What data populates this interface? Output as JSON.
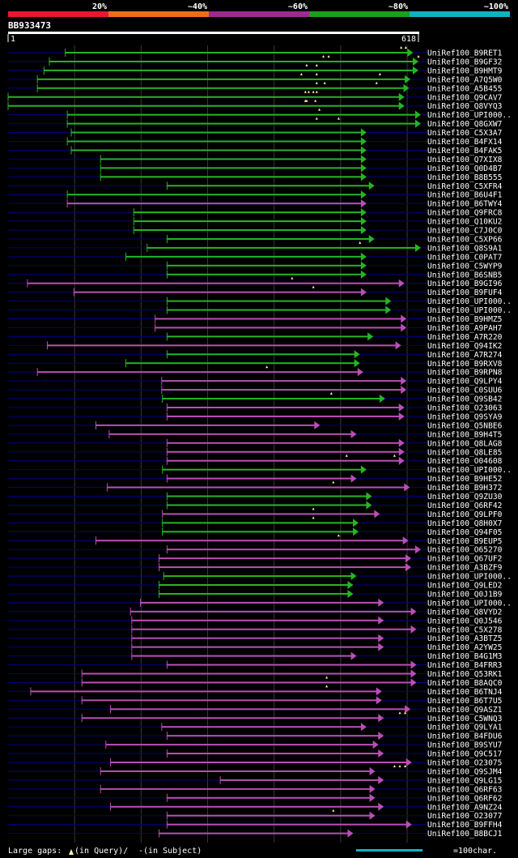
{
  "chart_data": {
    "type": "alignment_overview",
    "query_id": "BB933473",
    "query_start_label": "1",
    "query_end_label": "618",
    "query_length": 618,
    "identity_legend": [
      {
        "label": "20%",
        "color": "#e8182f"
      },
      {
        "label": "~40%",
        "color": "#e86f1c"
      },
      {
        "label": "~60%",
        "color": "#9b2b8f"
      },
      {
        "label": "~80%",
        "color": "#1d9e1d"
      },
      {
        "label": "~100%",
        "color": "#12b0c0"
      }
    ],
    "colors": {
      "high": "#26b526",
      "medium": "#b94fb9",
      "gap": "#000080",
      "grid": "#383838"
    },
    "footer": {
      "gaps_prefix": "Large gaps:",
      "gaps_query": "(in Query)/",
      "gaps_subject_mark": "-",
      "gaps_subject": " (in Subject)",
      "scale_label": "=100char.",
      "scale_units": 100
    },
    "hits": [
      {
        "name": "UniRef100_B9RET1",
        "start": 87,
        "end": 610,
        "id": "high"
      },
      {
        "name": "UniRef100_B9GF32",
        "start": 63,
        "end": 618,
        "id": "high"
      },
      {
        "name": "UniRef100_B9HMT9",
        "start": 55,
        "end": 618,
        "id": "high"
      },
      {
        "name": "UniRef100_A7Q5W0",
        "start": 45,
        "end": 606,
        "id": "high"
      },
      {
        "name": "UniRef100_A5B455",
        "start": 45,
        "end": 604,
        "id": "high"
      },
      {
        "name": "UniRef100_Q9CAV7",
        "start": 1,
        "end": 597,
        "id": "high"
      },
      {
        "name": "UniRef100_Q8VYQ3",
        "start": 1,
        "end": 597,
        "id": "high"
      },
      {
        "name": "UniRef100_UPI000..",
        "start": 90,
        "end": 635,
        "id": "high"
      },
      {
        "name": "UniRef100_Q8GXW7",
        "start": 90,
        "end": 635,
        "id": "high"
      },
      {
        "name": "UniRef100_C5X3A7",
        "start": 96,
        "end": 540,
        "id": "high"
      },
      {
        "name": "UniRef100_B4FX14",
        "start": 90,
        "end": 540,
        "id": "high"
      },
      {
        "name": "UniRef100_B4FAK5",
        "start": 96,
        "end": 540,
        "id": "high"
      },
      {
        "name": "UniRef100_Q7XIX8",
        "start": 140,
        "end": 540,
        "id": "high"
      },
      {
        "name": "UniRef100_Q0D4B7",
        "start": 140,
        "end": 540,
        "id": "high"
      },
      {
        "name": "UniRef100_B8B555",
        "start": 140,
        "end": 540,
        "id": "high"
      },
      {
        "name": "UniRef100_C5XFR4",
        "start": 240,
        "end": 552,
        "id": "high"
      },
      {
        "name": "UniRef100_B6U4F1",
        "start": 90,
        "end": 540,
        "id": "high"
      },
      {
        "name": "UniRef100_B6TWY4",
        "start": 90,
        "end": 540,
        "id": "medium"
      },
      {
        "name": "UniRef100_Q9FRC8",
        "start": 190,
        "end": 540,
        "id": "high"
      },
      {
        "name": "UniRef100_Q10KU2",
        "start": 190,
        "end": 540,
        "id": "high"
      },
      {
        "name": "UniRef100_C7J0C0",
        "start": 190,
        "end": 540,
        "id": "high"
      },
      {
        "name": "UniRef100_C5XP66",
        "start": 240,
        "end": 552,
        "id": "high"
      },
      {
        "name": "UniRef100_Q8S9A1",
        "start": 210,
        "end": 635,
        "id": "high"
      },
      {
        "name": "UniRef100_C0PAT7",
        "start": 178,
        "end": 540,
        "id": "high"
      },
      {
        "name": "UniRef100_C5WYP9",
        "start": 240,
        "end": 540,
        "id": "high"
      },
      {
        "name": "UniRef100_B6SNB5",
        "start": 240,
        "end": 540,
        "id": "high"
      },
      {
        "name": "UniRef100_B9GI96",
        "start": 30,
        "end": 597,
        "id": "medium"
      },
      {
        "name": "UniRef100_B9FUF4",
        "start": 100,
        "end": 540,
        "id": "medium"
      },
      {
        "name": "UniRef100_UPI000..",
        "start": 240,
        "end": 577,
        "id": "high"
      },
      {
        "name": "UniRef100_UPI000..",
        "start": 240,
        "end": 577,
        "id": "high"
      },
      {
        "name": "UniRef100_B9HMZ5",
        "start": 222,
        "end": 600,
        "id": "medium"
      },
      {
        "name": "UniRef100_A9PAH7",
        "start": 222,
        "end": 600,
        "id": "medium"
      },
      {
        "name": "UniRef100_A7R220",
        "start": 240,
        "end": 550,
        "id": "high"
      },
      {
        "name": "UniRef100_Q94IK2",
        "start": 60,
        "end": 592,
        "id": "medium"
      },
      {
        "name": "UniRef100_A7R274",
        "start": 240,
        "end": 530,
        "id": "high"
      },
      {
        "name": "UniRef100_B9RXV8",
        "start": 178,
        "end": 530,
        "id": "high"
      },
      {
        "name": "UniRef100_B9RPN8",
        "start": 45,
        "end": 535,
        "id": "medium"
      },
      {
        "name": "UniRef100_Q9LPY4",
        "start": 232,
        "end": 600,
        "id": "medium"
      },
      {
        "name": "UniRef100_C0SUU6",
        "start": 232,
        "end": 600,
        "id": "medium"
      },
      {
        "name": "UniRef100_Q9SB42",
        "start": 233,
        "end": 568,
        "id": "high"
      },
      {
        "name": "UniRef100_O23063",
        "start": 240,
        "end": 597,
        "id": "medium"
      },
      {
        "name": "UniRef100_Q9SYA9",
        "start": 240,
        "end": 597,
        "id": "medium"
      },
      {
        "name": "UniRef100_Q5NBE6",
        "start": 133,
        "end": 470,
        "id": "medium"
      },
      {
        "name": "UniRef100_B9H4T5",
        "start": 153,
        "end": 525,
        "id": "medium"
      },
      {
        "name": "UniRef100_Q8LAG8",
        "start": 240,
        "end": 597,
        "id": "medium"
      },
      {
        "name": "UniRef100_Q8LE85",
        "start": 240,
        "end": 597,
        "id": "medium"
      },
      {
        "name": "UniRef100_O04608",
        "start": 240,
        "end": 597,
        "id": "medium"
      },
      {
        "name": "UniRef100_UPI000..",
        "start": 233,
        "end": 540,
        "id": "high"
      },
      {
        "name": "UniRef100_B9HE52",
        "start": 240,
        "end": 525,
        "id": "medium"
      },
      {
        "name": "UniRef100_B9H372",
        "start": 150,
        "end": 605,
        "id": "medium"
      },
      {
        "name": "UniRef100_Q9ZU30",
        "start": 240,
        "end": 548,
        "id": "high"
      },
      {
        "name": "UniRef100_Q6RF42",
        "start": 240,
        "end": 548,
        "id": "high"
      },
      {
        "name": "UniRef100_Q9LPF0",
        "start": 233,
        "end": 560,
        "id": "medium"
      },
      {
        "name": "UniRef100_Q8H0X7",
        "start": 233,
        "end": 528,
        "id": "high"
      },
      {
        "name": "UniRef100_Q94F05",
        "start": 233,
        "end": 528,
        "id": "high"
      },
      {
        "name": "UniRef100_B9EUP5",
        "start": 133,
        "end": 603,
        "id": "medium"
      },
      {
        "name": "UniRef100_O65270",
        "start": 240,
        "end": 635,
        "id": "medium"
      },
      {
        "name": "UniRef100_Q67UF2",
        "start": 228,
        "end": 607,
        "id": "medium"
      },
      {
        "name": "UniRef100_A3BZF9",
        "start": 228,
        "end": 607,
        "id": "medium"
      },
      {
        "name": "UniRef100_UPI000..",
        "start": 235,
        "end": 525,
        "id": "high"
      },
      {
        "name": "UniRef100_Q9LED2",
        "start": 228,
        "end": 520,
        "id": "high"
      },
      {
        "name": "UniRef100_Q0J1B9",
        "start": 228,
        "end": 520,
        "id": "high"
      },
      {
        "name": "UniRef100_UPI000..",
        "start": 200,
        "end": 566,
        "id": "medium"
      },
      {
        "name": "UniRef100_Q8VYD2",
        "start": 185,
        "end": 615,
        "id": "medium"
      },
      {
        "name": "UniRef100_Q0J546",
        "start": 187,
        "end": 566,
        "id": "medium"
      },
      {
        "name": "UniRef100_C5X278",
        "start": 187,
        "end": 615,
        "id": "medium"
      },
      {
        "name": "UniRef100_A3BTZ5",
        "start": 187,
        "end": 566,
        "id": "medium"
      },
      {
        "name": "UniRef100_A2YW25",
        "start": 187,
        "end": 566,
        "id": "medium"
      },
      {
        "name": "UniRef100_B4G1M3",
        "start": 187,
        "end": 525,
        "id": "medium"
      },
      {
        "name": "UniRef100_B4FRR3",
        "start": 240,
        "end": 615,
        "id": "medium"
      },
      {
        "name": "UniRef100_Q53RK1",
        "start": 112,
        "end": 615,
        "id": "medium"
      },
      {
        "name": "UniRef100_B8AQC0",
        "start": 112,
        "end": 615,
        "id": "medium"
      },
      {
        "name": "UniRef100_B6TNJ4",
        "start": 35,
        "end": 563,
        "id": "medium"
      },
      {
        "name": "UniRef100_B6T7U5",
        "start": 112,
        "end": 563,
        "id": "medium"
      },
      {
        "name": "UniRef100_Q9ASZ1",
        "start": 155,
        "end": 606,
        "id": "medium"
      },
      {
        "name": "UniRef100_C5WNQ3",
        "start": 112,
        "end": 566,
        "id": "medium"
      },
      {
        "name": "UniRef100_Q9LYA1",
        "start": 232,
        "end": 540,
        "id": "medium"
      },
      {
        "name": "UniRef100_B4FDU6",
        "start": 240,
        "end": 566,
        "id": "medium"
      },
      {
        "name": "UniRef100_B9SYU7",
        "start": 148,
        "end": 558,
        "id": "medium"
      },
      {
        "name": "UniRef100_Q9C517",
        "start": 240,
        "end": 566,
        "id": "medium"
      },
      {
        "name": "UniRef100_O23075",
        "start": 155,
        "end": 608,
        "id": "medium"
      },
      {
        "name": "UniRef100_Q9SJM4",
        "start": 140,
        "end": 553,
        "id": "medium"
      },
      {
        "name": "UniRef100_Q9LG15",
        "start": 320,
        "end": 566,
        "id": "medium"
      },
      {
        "name": "UniRef100_Q6RF63",
        "start": 140,
        "end": 553,
        "id": "medium"
      },
      {
        "name": "UniRef100_Q6RF62",
        "start": 240,
        "end": 553,
        "id": "medium"
      },
      {
        "name": "UniRef100_A9NZ24",
        "start": 155,
        "end": 566,
        "id": "medium"
      },
      {
        "name": "UniRef100_O23077",
        "start": 240,
        "end": 553,
        "id": "medium"
      },
      {
        "name": "UniRef100_B9FFH4",
        "start": 240,
        "end": 608,
        "id": "medium"
      },
      {
        "name": "UniRef100_B8BCJ1",
        "start": 228,
        "end": 520,
        "id": "medium"
      }
    ],
    "markers": [
      [
        599,
        592
      ],
      [
        618,
        475,
        483
      ],
      [
        465,
        450
      ],
      [
        465,
        442,
        560
      ],
      [
        465,
        477,
        555
      ],
      [
        460,
        465,
        448,
        453
      ],
      [
        450,
        463,
        448
      ],
      [
        469
      ],
      [
        465,
        498
      ],
      [],
      [],
      [],
      [],
      [],
      [],
      [],
      [],
      [],
      [],
      [],
      [],
      [],
      [
        530
      ],
      [],
      [],
      [],
      [
        428
      ],
      [
        460
      ],
      [],
      [],
      [],
      [],
      [],
      [],
      [],
      [],
      [
        390
      ],
      [],
      [],
      [
        487
      ],
      [],
      [],
      [],
      [],
      [],
      [],
      [
        510,
        582
      ],
      [],
      [],
      [
        490
      ],
      [],
      [],
      [
        460
      ],
      [
        460
      ],
      [],
      [
        498
      ],
      [],
      [],
      [],
      [],
      [],
      [],
      [],
      [],
      [],
      [],
      [],
      [],
      [],
      [],
      [],
      [
        480
      ],
      [
        480
      ],
      [],
      [],
      [
        598,
        590
      ],
      [],
      [],
      [],
      [],
      [],
      [
        598,
        590,
        582
      ],
      [],
      [],
      [],
      [],
      [
        490
      ],
      [],
      [],
      []
    ]
  }
}
